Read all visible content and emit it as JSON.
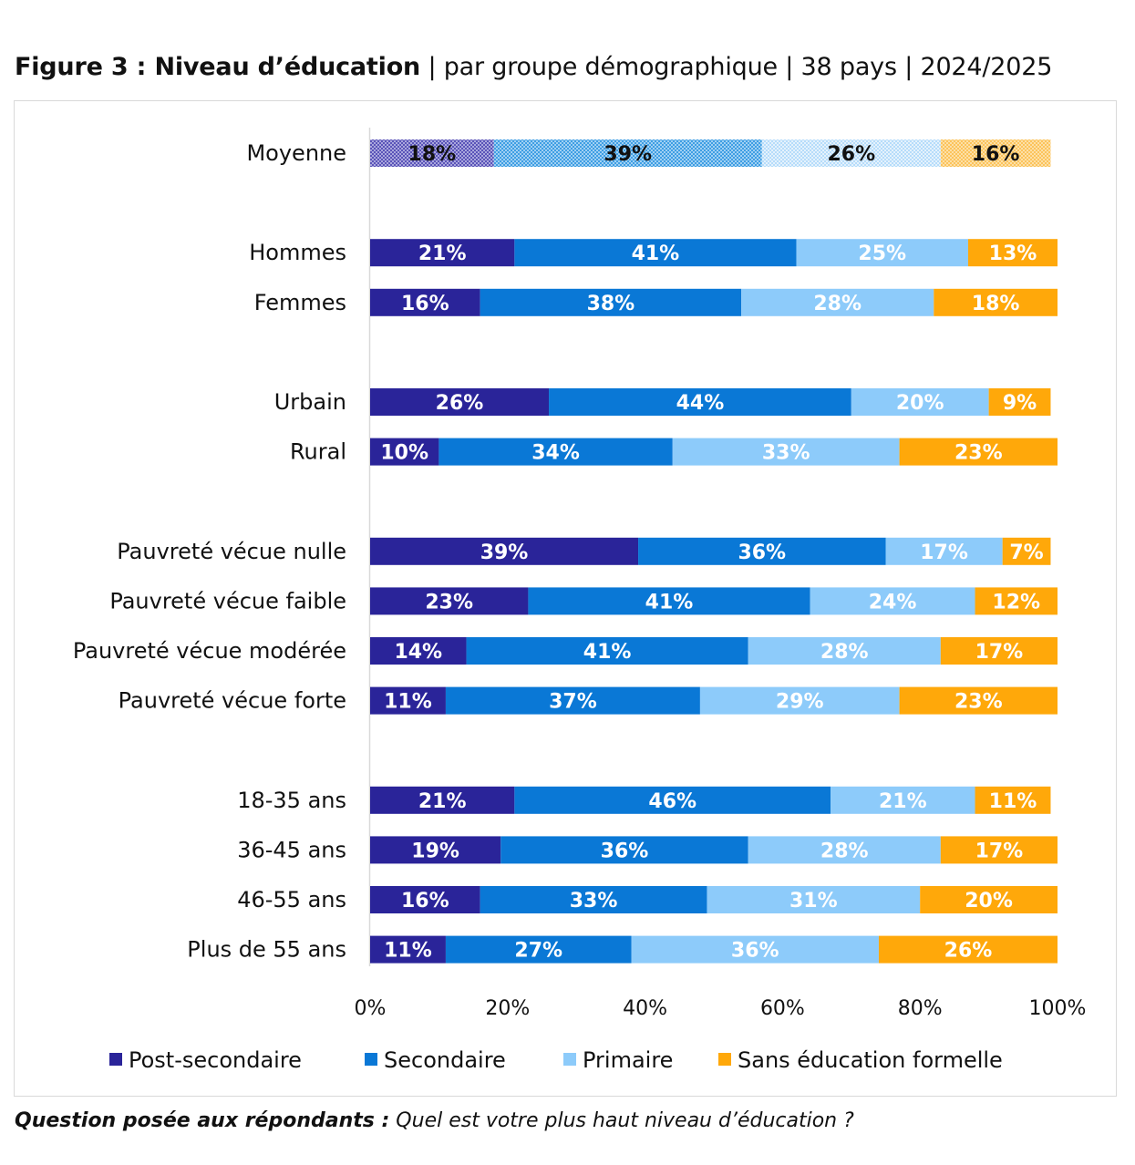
{
  "title": {
    "bold": "Figure 3 : Niveau d’éducation",
    "rest": " | par groupe démographique | 38 pays | 2024/2025"
  },
  "question": {
    "bold": "Question posée aux répondants :",
    "text": " Quel est votre plus haut niveau d’éducation ?"
  },
  "chart_data": {
    "type": "bar",
    "orientation": "horizontal",
    "stacked": true,
    "title": "Figure 3 : Niveau d’éducation | par groupe démographique | 38 pays | 2024/2025",
    "xlabel": "",
    "ylabel": "",
    "xlim": [
      0,
      100
    ],
    "x_ticks": [
      "0%",
      "20%",
      "40%",
      "60%",
      "80%",
      "100%"
    ],
    "grid": false,
    "legend_position": "bottom",
    "categories": [
      "Moyenne",
      "Hommes",
      "Femmes",
      "Urbain",
      "Rural",
      "Pauvreté vécue nulle",
      "Pauvreté vécue faible",
      "Pauvreté vécue modérée",
      "Pauvreté vécue forte",
      "18-35 ans",
      "36-45 ans",
      "46-55 ans",
      "Plus de 55 ans"
    ],
    "groups": [
      [
        0
      ],
      [
        1,
        2
      ],
      [
        3,
        4
      ],
      [
        5,
        6,
        7,
        8
      ],
      [
        9,
        10,
        11,
        12
      ]
    ],
    "highlighted_category": "Moyenne",
    "series": [
      {
        "name": "Post-secondaire",
        "color": "#2A2499",
        "values": [
          18,
          21,
          16,
          26,
          10,
          39,
          23,
          14,
          11,
          21,
          19,
          16,
          11
        ]
      },
      {
        "name": "Secondaire",
        "color": "#0A78D6",
        "values": [
          39,
          41,
          38,
          44,
          34,
          36,
          41,
          41,
          37,
          46,
          36,
          33,
          27
        ]
      },
      {
        "name": "Primaire",
        "color": "#8DCBFA",
        "values": [
          26,
          25,
          28,
          20,
          33,
          17,
          24,
          28,
          29,
          21,
          28,
          31,
          36
        ]
      },
      {
        "name": "Sans éducation formelle",
        "color": "#FFA80A",
        "values": [
          16,
          13,
          18,
          9,
          23,
          7,
          12,
          17,
          23,
          11,
          17,
          20,
          26
        ]
      }
    ],
    "value_label_suffix": "%"
  }
}
